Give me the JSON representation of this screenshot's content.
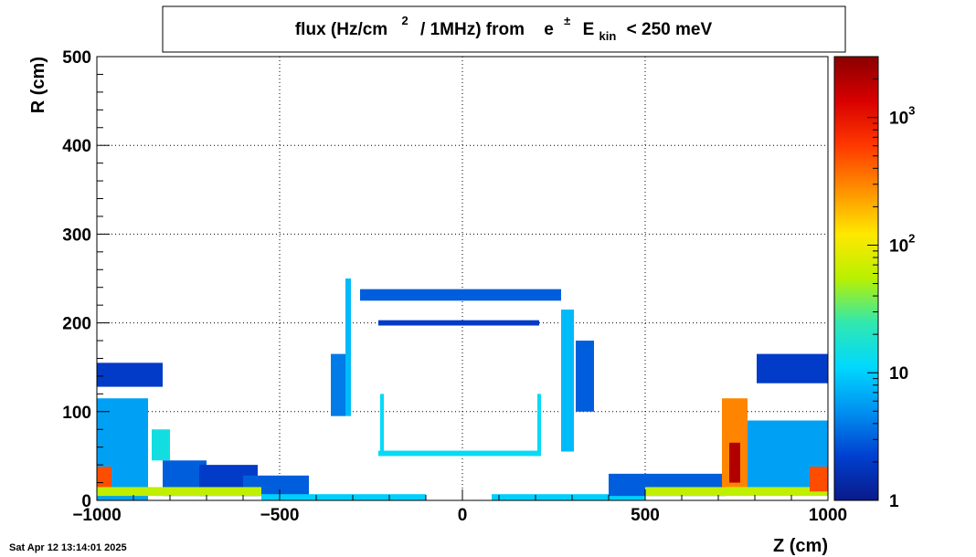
{
  "chart_data": {
    "type": "heatmap",
    "title": {
      "main": "flux (Hz/cm",
      "sup1": "2",
      "mid": "/ 1MHz) from",
      "particle": "e",
      "particle_sup": "±",
      "energy": "E",
      "energy_sub": "kin",
      "cut": "< 250 meV"
    },
    "xlabel": "Z (cm)",
    "ylabel": "R (cm)",
    "xlim": [
      -1000,
      1000
    ],
    "ylim": [
      0,
      500
    ],
    "x_ticks": [
      {
        "value": -1000,
        "label": "−1000"
      },
      {
        "value": -500,
        "label": "−500"
      },
      {
        "value": 0,
        "label": "0"
      },
      {
        "value": 500,
        "label": "500"
      },
      {
        "value": 1000,
        "label": "1000"
      }
    ],
    "y_ticks": [
      {
        "value": 0,
        "label": "0"
      },
      {
        "value": 100,
        "label": "100"
      },
      {
        "value": 200,
        "label": "200"
      },
      {
        "value": 300,
        "label": "300"
      },
      {
        "value": 400,
        "label": "400"
      },
      {
        "value": 500,
        "label": "500"
      }
    ],
    "grid": true,
    "colorbar": {
      "scale": "log",
      "range": [
        1,
        3000
      ],
      "ticks": [
        {
          "value": 1,
          "base": "1",
          "exp": ""
        },
        {
          "value": 10,
          "base": "10",
          "exp": ""
        },
        {
          "value": 100,
          "base": "10",
          "exp": "2"
        },
        {
          "value": 1000,
          "base": "10",
          "exp": "3"
        }
      ],
      "colors": [
        "#0a1a8a",
        "#0040d0",
        "#0090f0",
        "#00d8ff",
        "#30e8b0",
        "#b8f000",
        "#ffe800",
        "#ff9000",
        "#ff3800",
        "#d80000",
        "#8a0000"
      ]
    },
    "regions": [
      {
        "z": [
          -1000,
          -820
        ],
        "r": [
          128,
          155
        ],
        "value": 2
      },
      {
        "z": [
          -1000,
          -860
        ],
        "r": [
          0,
          115
        ],
        "value": 6
      },
      {
        "z": [
          -1000,
          -960
        ],
        "r": [
          12,
          38
        ],
        "value": 500
      },
      {
        "z": [
          -850,
          -800
        ],
        "r": [
          45,
          80
        ],
        "value": 15
      },
      {
        "z": [
          -820,
          -700
        ],
        "r": [
          5,
          45
        ],
        "value": 3
      },
      {
        "z": [
          -720,
          -560
        ],
        "r": [
          5,
          40
        ],
        "value": 2
      },
      {
        "z": [
          -600,
          -420
        ],
        "r": [
          5,
          28
        ],
        "value": 3
      },
      {
        "z": [
          -1000,
          -550
        ],
        "r": [
          5,
          15
        ],
        "value": 60
      },
      {
        "z": [
          -550,
          -100
        ],
        "r": [
          0,
          7
        ],
        "value": 10
      },
      {
        "z": [
          -320,
          -305
        ],
        "r": [
          95,
          250
        ],
        "value": 8
      },
      {
        "z": [
          -360,
          -320
        ],
        "r": [
          95,
          165
        ],
        "value": 4
      },
      {
        "z": [
          -280,
          270
        ],
        "r": [
          225,
          238
        ],
        "value": 3
      },
      {
        "z": [
          -230,
          210
        ],
        "r": [
          197,
          203
        ],
        "value": 2
      },
      {
        "z": [
          -230,
          210
        ],
        "r": [
          50,
          56
        ],
        "value": 12
      },
      {
        "z": [
          -225,
          -215
        ],
        "r": [
          50,
          120
        ],
        "value": 12
      },
      {
        "z": [
          205,
          215
        ],
        "r": [
          50,
          120
        ],
        "value": 12
      },
      {
        "z": [
          270,
          305
        ],
        "r": [
          55,
          215
        ],
        "value": 8
      },
      {
        "z": [
          310,
          360
        ],
        "r": [
          100,
          180
        ],
        "value": 3
      },
      {
        "z": [
          80,
          500
        ],
        "r": [
          0,
          7
        ],
        "value": 10
      },
      {
        "z": [
          400,
          720
        ],
        "r": [
          5,
          30
        ],
        "value": 3
      },
      {
        "z": [
          500,
          1000
        ],
        "r": [
          5,
          15
        ],
        "value": 60
      },
      {
        "z": [
          710,
          780
        ],
        "r": [
          15,
          115
        ],
        "value": 300
      },
      {
        "z": [
          730,
          760
        ],
        "r": [
          20,
          65
        ],
        "value": 2000
      },
      {
        "z": [
          780,
          1000
        ],
        "r": [
          15,
          90
        ],
        "value": 6
      },
      {
        "z": [
          950,
          1000
        ],
        "r": [
          10,
          38
        ],
        "value": 500
      },
      {
        "z": [
          805,
          1000
        ],
        "r": [
          132,
          165
        ],
        "value": 2
      }
    ]
  },
  "footer": {
    "timestamp": "Sat Apr 12 13:14:01 2025"
  }
}
